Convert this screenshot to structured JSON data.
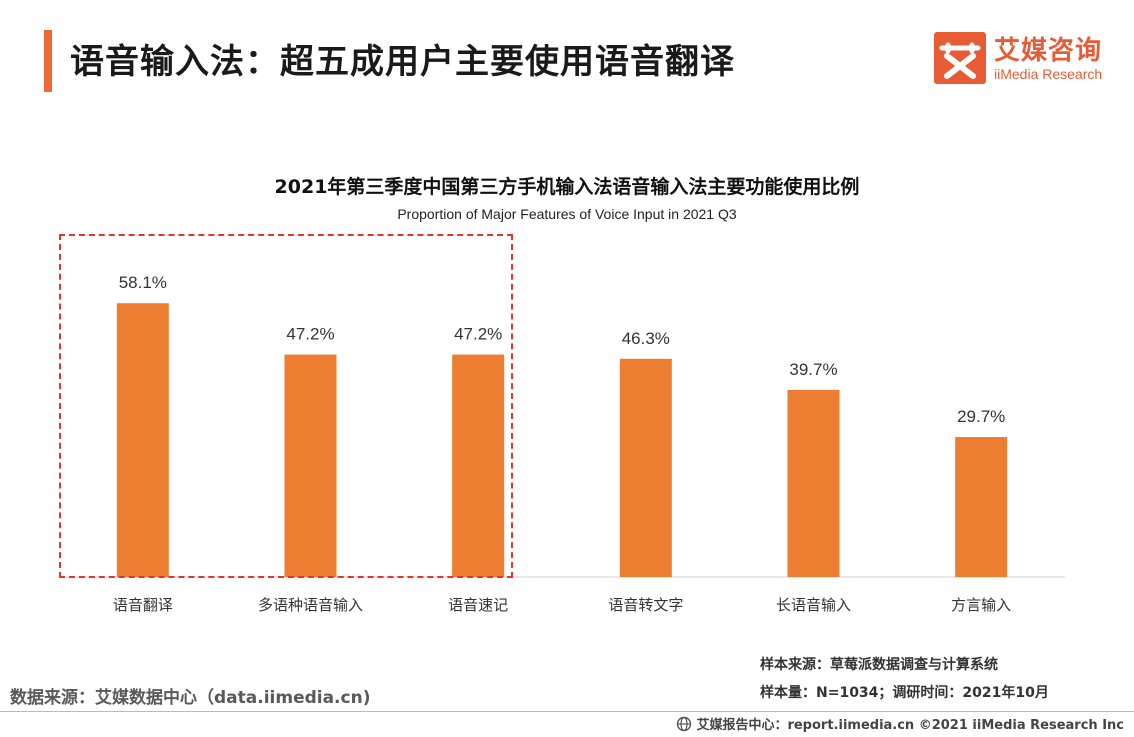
{
  "header": {
    "title": "语音输入法：超五成用户主要使用语音翻译",
    "accent_color": "#ee6c33"
  },
  "logo": {
    "brand_cn": "艾媒咨询",
    "brand_en": "iiMedia Research",
    "icon": "ai-logo-icon",
    "color": "#e85c35"
  },
  "chart_data": {
    "type": "bar",
    "title": "2021年第三季度中国第三方手机输入法语音输入法主要功能使用比例",
    "subtitle": "Proportion of Major Features of Voice Input in 2021 Q3",
    "categories": [
      "语音翻译",
      "多语种语音输入",
      "语音速记",
      "语音转文字",
      "长语音输入",
      "方言输入"
    ],
    "values": [
      58.1,
      47.2,
      47.2,
      46.3,
      39.7,
      29.7
    ],
    "value_labels": [
      "58.1%",
      "47.2%",
      "47.2%",
      "46.3%",
      "39.7%",
      "29.7%"
    ],
    "unit": "%",
    "ylim": [
      0,
      73
    ],
    "bar_color": "#ed7d31",
    "grid": false,
    "highlighted_categories": [
      "语音翻译",
      "多语种语音输入",
      "语音速记"
    ],
    "highlight_color": "#e8332c"
  },
  "footnotes": {
    "data_source": "数据来源：艾媒数据中心（data.iimedia.cn)",
    "sample_source": "样本来源：草莓派数据调查与计算系统",
    "sample_size": "样本量：N=1034；调研时间：2021年10月"
  },
  "footer": {
    "globe_icon": "globe-icon",
    "text": "艾媒报告中心：report.iimedia.cn   ©2021  iiMedia Research  Inc"
  }
}
